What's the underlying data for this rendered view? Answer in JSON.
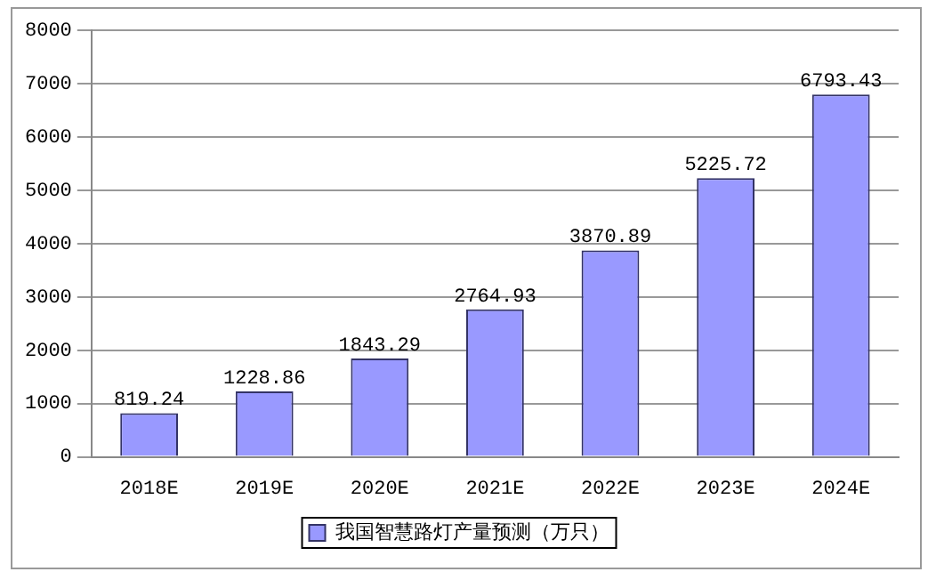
{
  "chart_data": {
    "type": "bar",
    "categories": [
      "2018E",
      "2019E",
      "2020E",
      "2021E",
      "2022E",
      "2023E",
      "2024E"
    ],
    "series": [
      {
        "name": "我国智慧路灯产量预测（万只）",
        "color": "#9999ff",
        "values": [
          819.24,
          1228.86,
          1843.29,
          2764.93,
          3870.89,
          5225.72,
          6793.43
        ]
      }
    ],
    "ylim": [
      0,
      8000
    ],
    "yticks": [
      0,
      1000,
      2000,
      3000,
      4000,
      5000,
      6000,
      7000,
      8000
    ],
    "grid": "y",
    "legend": "bottom",
    "data_labels": true
  }
}
